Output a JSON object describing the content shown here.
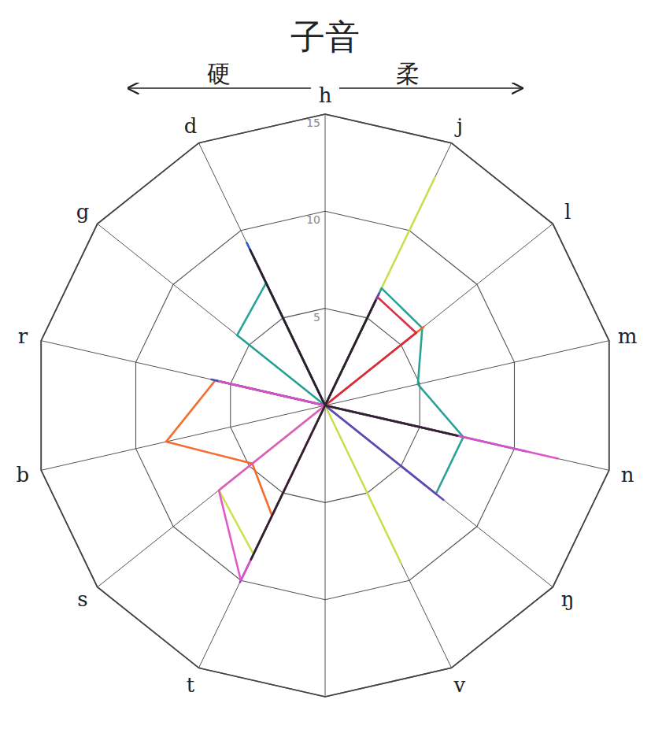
{
  "chart_data": {
    "type": "radar",
    "title": "子音",
    "annotations": [
      "硬",
      "柔"
    ],
    "categories": [
      "h",
      "j",
      "l",
      "m",
      "n",
      "ŋ",
      "v",
      null,
      "t",
      "s",
      "b",
      "r",
      "g",
      "d"
    ],
    "ylim": [
      0,
      15
    ],
    "yticks": [
      5,
      10,
      15
    ],
    "grid": true,
    "series": [
      {
        "color": "#c9e04a",
        "values": [
          0,
          13,
          0,
          0,
          7,
          0,
          9,
          0,
          8.5,
          7,
          0,
          0,
          0,
          8.5
        ]
      },
      {
        "color": "#1f9e8f",
        "values": [
          0,
          6.7,
          6.4,
          4.9,
          7.3,
          7.3,
          0,
          0,
          0,
          0,
          0,
          0,
          5.8,
          7
        ]
      },
      {
        "color": "#f26522",
        "values": [
          0,
          0,
          6.5,
          0,
          0,
          0,
          0,
          0,
          6.3,
          4.8,
          8.4,
          5.8,
          0,
          8.7
        ]
      },
      {
        "color": "#d7263d",
        "values": [
          0,
          6.2,
          6,
          0,
          7,
          0,
          0,
          0,
          0,
          0,
          0,
          5.7,
          0,
          8.5
        ]
      },
      {
        "color": "#2b50c8",
        "values": [
          0,
          0,
          0,
          0,
          10.6,
          0,
          0,
          0,
          0,
          0,
          0,
          6,
          0,
          9.3
        ]
      },
      {
        "color": "#6a3fb5",
        "values": [
          0,
          6.4,
          0,
          0,
          0,
          7.8,
          0,
          0,
          10.1,
          0,
          0,
          0,
          0,
          0
        ]
      },
      {
        "color": "#e052c8",
        "values": [
          0,
          0,
          0,
          0,
          12.3,
          0,
          0,
          0,
          10,
          7,
          0,
          5.6,
          0,
          0
        ]
      },
      {
        "color": "#222222",
        "values": [
          0,
          6,
          0,
          0,
          7,
          0,
          0,
          0,
          8.8,
          0,
          0,
          0,
          0,
          8.9
        ]
      }
    ]
  }
}
